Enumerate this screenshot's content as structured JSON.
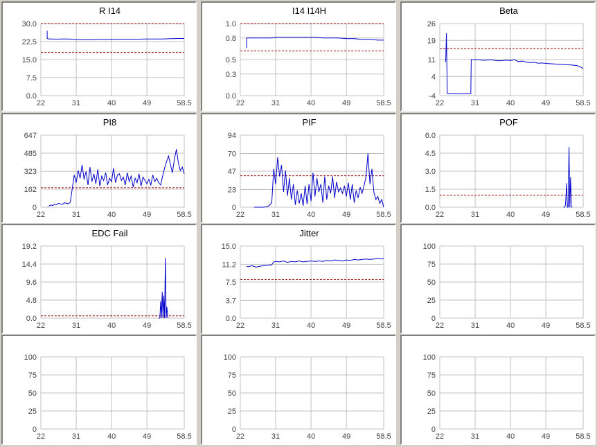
{
  "colors": {
    "data_line": "#0000cc",
    "threshold_line": "#990000",
    "grid": "#c0c0c0"
  },
  "chart_data": [
    {
      "type": "line",
      "title": "R I14",
      "x_ticks": [
        "22",
        "31",
        "40",
        "49",
        "58.5"
      ],
      "xlim": [
        22,
        58.5
      ],
      "y_ticks": [
        "0.0",
        "7.5",
        "15.0",
        "22.5",
        "30.0"
      ],
      "ylim": [
        0,
        30
      ],
      "thresholds": [
        30,
        18
      ],
      "series": [
        {
          "x": [
            23.6,
            23.6,
            24.0,
            25.0,
            26.0,
            27.0,
            28.0,
            29.0,
            30.0,
            30.5,
            31.0,
            33.0,
            35.0,
            37.0,
            39.0,
            41.0,
            43.0,
            45.0,
            47.0,
            49.0,
            51.0,
            53.0,
            55.0,
            57.0,
            58.5
          ],
          "y": [
            27.0,
            23.8,
            23.6,
            23.6,
            23.5,
            23.6,
            23.6,
            23.6,
            23.5,
            23.4,
            23.3,
            23.3,
            23.3,
            23.4,
            23.4,
            23.5,
            23.5,
            23.5,
            23.5,
            23.6,
            23.6,
            23.6,
            23.7,
            23.8,
            23.8
          ]
        }
      ]
    },
    {
      "type": "line",
      "title": "I14 I14H",
      "x_ticks": [
        "22",
        "31",
        "40",
        "49",
        "58.5"
      ],
      "xlim": [
        22,
        58.5
      ],
      "y_ticks": [
        "0.0",
        "0.3",
        "0.5",
        "0.8",
        "1.0"
      ],
      "ylim": [
        0,
        1
      ],
      "thresholds": [
        1.0,
        0.62
      ],
      "series": [
        {
          "x": [
            23.6,
            23.6,
            24.0,
            26.0,
            28.0,
            30.0,
            31.0,
            33.0,
            35.0,
            37.0,
            39.0,
            41.0,
            43.0,
            45.0,
            47.0,
            49.0,
            51.0,
            53.0,
            55.0,
            57.0,
            58.5
          ],
          "y": [
            0.66,
            0.8,
            0.8,
            0.8,
            0.8,
            0.8,
            0.81,
            0.81,
            0.81,
            0.81,
            0.81,
            0.81,
            0.8,
            0.8,
            0.8,
            0.79,
            0.79,
            0.78,
            0.78,
            0.77,
            0.77
          ]
        }
      ]
    },
    {
      "type": "line",
      "title": "Beta",
      "x_ticks": [
        "22",
        "31",
        "40",
        "49",
        "58.5"
      ],
      "xlim": [
        22,
        58.5
      ],
      "y_ticks": [
        "-4",
        "4",
        "11",
        "19",
        "26"
      ],
      "ylim": [
        -4,
        26
      ],
      "thresholds": [
        15.5
      ],
      "series": [
        {
          "x": [
            23.5,
            23.7,
            23.9,
            24.1,
            24.3,
            25.0,
            26.0,
            27.0,
            28.0,
            29.0,
            29.9,
            30.0,
            31.0,
            32.0,
            33.0,
            34.0,
            35.0,
            36.0,
            37.0,
            38.0,
            39.0,
            40.0,
            41.0,
            42.0,
            43.0,
            44.0,
            45.0,
            46.0,
            47.0,
            48.0,
            49.0,
            50.0,
            51.0,
            52.0,
            53.0,
            54.0,
            55.0,
            56.0,
            57.0,
            58.0,
            58.5
          ],
          "y": [
            10.0,
            22.0,
            -3.0,
            -3.2,
            -3.1,
            -3.2,
            -3.1,
            -3.2,
            -3.2,
            -3.1,
            -3.2,
            11.0,
            11.0,
            10.9,
            10.7,
            10.8,
            10.9,
            10.7,
            10.5,
            10.6,
            10.8,
            10.6,
            11.0,
            10.2,
            10.4,
            10.0,
            9.8,
            9.9,
            9.5,
            9.6,
            9.4,
            9.3,
            9.2,
            9.1,
            9.0,
            8.9,
            8.8,
            8.7,
            8.5,
            7.8,
            7.2
          ]
        }
      ]
    },
    {
      "type": "line",
      "title": "PI8",
      "x_ticks": [
        "22",
        "31",
        "40",
        "49",
        "58.5"
      ],
      "xlim": [
        22,
        58.5
      ],
      "y_ticks": [
        "0",
        "162",
        "323",
        "485",
        "647"
      ],
      "ylim": [
        0,
        647
      ],
      "thresholds": [
        175
      ],
      "series": [
        {
          "x": [
            24.0,
            24.5,
            25,
            25.5,
            26,
            26.5,
            27,
            27.5,
            28,
            28.5,
            29,
            29.5,
            30,
            30.5,
            31,
            31.5,
            32,
            32.5,
            33,
            33.5,
            34,
            34.5,
            35,
            35.5,
            36,
            36.5,
            37,
            37.5,
            38,
            38.5,
            39,
            39.5,
            40,
            40.5,
            41,
            41.5,
            42,
            42.5,
            43,
            43.5,
            44,
            44.5,
            45,
            45.5,
            46,
            46.5,
            47,
            47.5,
            48,
            48.5,
            49,
            49.5,
            50,
            50.5,
            51,
            51.5,
            52,
            52.5,
            53,
            53.5,
            54,
            54.5,
            55,
            55.5,
            56,
            56.5,
            57,
            57.5,
            58,
            58.5
          ],
          "y": [
            10,
            20,
            15,
            28,
            22,
            35,
            30,
            25,
            40,
            35,
            30,
            45,
            170,
            290,
            220,
            330,
            260,
            380,
            250,
            320,
            200,
            360,
            230,
            300,
            210,
            340,
            190,
            280,
            240,
            310,
            200,
            260,
            230,
            350,
            220,
            290,
            300,
            240,
            270,
            200,
            310,
            230,
            280,
            180,
            260,
            220,
            300,
            190,
            270,
            240,
            210,
            250,
            200,
            290,
            230,
            260,
            220,
            200,
            280,
            350,
            410,
            460,
            380,
            310,
            430,
            520,
            400,
            330,
            360,
            300
          ]
        }
      ]
    },
    {
      "type": "line",
      "title": "PIF",
      "x_ticks": [
        "22",
        "31",
        "40",
        "49",
        "58.5"
      ],
      "xlim": [
        22,
        58.5
      ],
      "y_ticks": [
        "0",
        "23",
        "47",
        "70",
        "94"
      ],
      "ylim": [
        0,
        94
      ],
      "thresholds": [
        41
      ],
      "series": [
        {
          "x": [
            25.5,
            26,
            27,
            28,
            29,
            29.5,
            30,
            30.5,
            31,
            31.5,
            32,
            32.5,
            33,
            33.5,
            34,
            34.5,
            35,
            35.5,
            36,
            36.5,
            37,
            37.5,
            38,
            38.5,
            39,
            39.5,
            40,
            40.5,
            41,
            41.5,
            42,
            42.5,
            43,
            43.5,
            44,
            44.5,
            45,
            45.5,
            46,
            46.5,
            47,
            47.5,
            48,
            48.5,
            49,
            49.5,
            50,
            50.5,
            51,
            51.5,
            52,
            52.5,
            53,
            53.5,
            54,
            54.5,
            55,
            55.5,
            56,
            56.5,
            57,
            57.5,
            58,
            58.5
          ],
          "y": [
            0,
            0,
            0,
            0,
            1,
            3,
            6,
            50,
            30,
            65,
            40,
            55,
            20,
            48,
            15,
            38,
            10,
            30,
            3,
            22,
            5,
            18,
            2,
            28,
            4,
            30,
            8,
            45,
            14,
            38,
            20,
            30,
            6,
            40,
            10,
            28,
            18,
            40,
            12,
            33,
            20,
            25,
            18,
            28,
            14,
            32,
            10,
            30,
            6,
            22,
            12,
            26,
            18,
            28,
            40,
            70,
            30,
            50,
            20,
            10,
            14,
            5,
            10,
            0
          ]
        }
      ]
    },
    {
      "type": "line",
      "title": "POF",
      "x_ticks": [
        "22",
        "31",
        "40",
        "49",
        "58.5"
      ],
      "xlim": [
        22,
        58.5
      ],
      "y_ticks": [
        "0.0",
        "1.5",
        "3.0",
        "4.5",
        "6.0"
      ],
      "ylim": [
        0,
        6
      ],
      "thresholds": [
        1.0
      ],
      "series": [
        {
          "x": [
            53.5,
            53.8,
            54.0,
            54.3,
            54.5,
            54.7,
            54.9,
            55.1,
            55.3,
            55.5,
            55.7
          ],
          "y": [
            0,
            0,
            0.2,
            2.0,
            0,
            0,
            5.0,
            0,
            2.5,
            0,
            0
          ]
        }
      ]
    },
    {
      "type": "line",
      "title": "EDC Fail",
      "x_ticks": [
        "22",
        "31",
        "40",
        "49",
        "58.5"
      ],
      "xlim": [
        22,
        58.5
      ],
      "y_ticks": [
        "0.0",
        "4.8",
        "9.6",
        "14.4",
        "19.2"
      ],
      "ylim": [
        0,
        19.2
      ],
      "thresholds": [
        0.6
      ],
      "series": [
        {
          "x": [
            52.0,
            52.3,
            52.5,
            52.7,
            52.9,
            53.1,
            53.3,
            53.5,
            53.7,
            53.9,
            54.1,
            54.3
          ],
          "y": [
            0,
            0,
            4.5,
            0,
            7.0,
            0,
            6.0,
            0,
            16.0,
            0,
            3.0,
            0
          ]
        }
      ]
    },
    {
      "type": "line",
      "title": "Jitter",
      "x_ticks": [
        "22",
        "31",
        "40",
        "49",
        "58.5"
      ],
      "xlim": [
        22,
        58.5
      ],
      "y_ticks": [
        "0.0",
        "3.7",
        "7.5",
        "11.2",
        "15.0"
      ],
      "ylim": [
        0,
        15
      ],
      "thresholds": [
        8.0
      ],
      "series": [
        {
          "x": [
            23.6,
            24,
            25,
            26,
            27,
            28,
            29,
            30,
            30.5,
            31,
            32,
            33,
            34,
            35,
            36,
            37,
            38,
            39,
            40,
            41,
            42,
            43,
            44,
            45,
            46,
            47,
            48,
            49,
            50,
            51,
            52,
            53,
            54,
            55,
            56,
            57,
            58,
            58.5
          ],
          "y": [
            10.8,
            10.7,
            10.9,
            10.6,
            10.8,
            10.9,
            11.0,
            11.1,
            11.7,
            11.8,
            11.7,
            11.9,
            11.6,
            11.8,
            11.7,
            11.9,
            11.7,
            11.8,
            11.9,
            11.8,
            11.9,
            11.8,
            12.0,
            11.9,
            12.1,
            12.0,
            11.9,
            12.1,
            12.0,
            12.2,
            12.1,
            12.2,
            12.3,
            12.2,
            12.3,
            12.4,
            12.3,
            12.4
          ]
        }
      ]
    },
    {
      "type": "line",
      "title": "",
      "x_ticks": [
        "22",
        "31",
        "40",
        "49",
        "58.5"
      ],
      "xlim": [
        22,
        58.5
      ],
      "y_ticks": [
        "0",
        "25",
        "50",
        "75",
        "100"
      ],
      "ylim": [
        0,
        100
      ],
      "thresholds": [],
      "series": []
    },
    {
      "type": "line",
      "title": "",
      "x_ticks": [
        "22",
        "31",
        "40",
        "49",
        "58.5"
      ],
      "xlim": [
        22,
        58.5
      ],
      "y_ticks": [
        "0",
        "25",
        "50",
        "75",
        "100"
      ],
      "ylim": [
        0,
        100
      ],
      "thresholds": [],
      "series": []
    },
    {
      "type": "line",
      "title": "",
      "x_ticks": [
        "22",
        "31",
        "40",
        "49",
        "58.5"
      ],
      "xlim": [
        22,
        58.5
      ],
      "y_ticks": [
        "0",
        "25",
        "50",
        "75",
        "100"
      ],
      "ylim": [
        0,
        100
      ],
      "thresholds": [],
      "series": []
    },
    {
      "type": "line",
      "title": "",
      "x_ticks": [
        "22",
        "31",
        "40",
        "49",
        "58.5"
      ],
      "xlim": [
        22,
        58.5
      ],
      "y_ticks": [
        "0",
        "25",
        "50",
        "75",
        "100"
      ],
      "ylim": [
        0,
        100
      ],
      "thresholds": [],
      "series": []
    }
  ]
}
